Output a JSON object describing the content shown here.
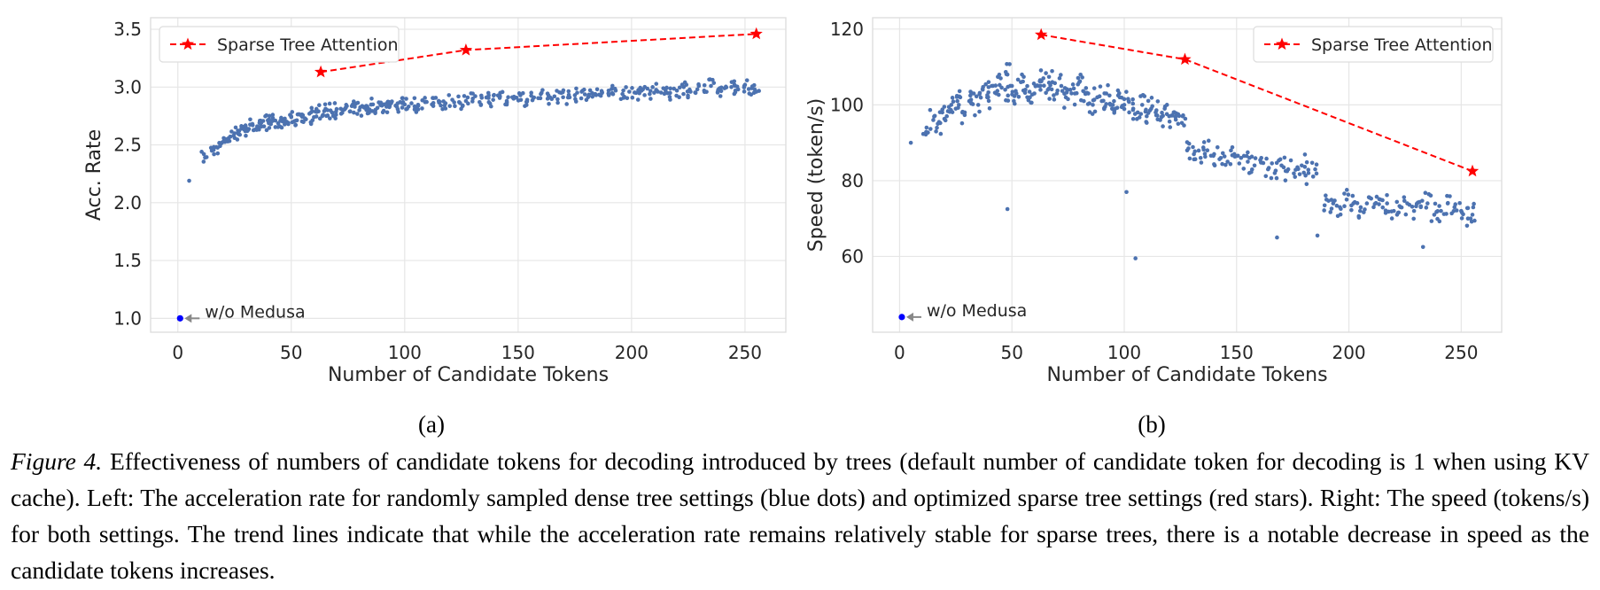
{
  "caption": {
    "lead": "Figure 4.",
    "text": "Effectiveness of numbers of candidate tokens for decoding introduced by trees (default number of candidate token for decoding is 1 when using KV cache). Left: The acceleration rate for randomly sampled dense tree settings (blue dots) and optimized sparse tree settings (red stars). Right: The speed (tokens/s) for both settings. The trend lines indicate that while the acceleration rate remains relatively stable for sparse trees, there is a notable decrease in speed as the candidate tokens increases."
  },
  "colors": {
    "dense": "#4c72b0",
    "sparse": "#ff0000",
    "baseline": "#0000ff",
    "arrow": "#888888",
    "grid": "#e6e6e6"
  },
  "chart_data": [
    {
      "type": "scatter",
      "panel_label": "(a)",
      "xlabel": "Number of Candidate Tokens",
      "ylabel": "Acc. Rate",
      "xlim": [
        -12,
        268
      ],
      "ylim": [
        0.88,
        3.6
      ],
      "xticks": [
        0,
        50,
        100,
        150,
        200,
        250
      ],
      "yticks": [
        1.0,
        1.5,
        2.0,
        2.5,
        3.0,
        3.5
      ],
      "ytick_labels": [
        "1.0",
        "1.5",
        "2.0",
        "2.5",
        "3.0",
        "3.5"
      ],
      "grid": true,
      "legend": {
        "position": "top-left",
        "label": "Sparse Tree Attention"
      },
      "annotation": {
        "text": "w/o Medusa",
        "x": 1,
        "y": 1.0
      },
      "series": [
        {
          "name": "Sparse Tree Attention",
          "style": "dashed-line-star",
          "x": [
            63,
            127,
            255
          ],
          "y": [
            3.13,
            3.32,
            3.46
          ]
        },
        {
          "style": "scatter-dots",
          "x": [
            1,
            5,
            12,
            15,
            17,
            19,
            21,
            23,
            25,
            27,
            28,
            30,
            31,
            33,
            35,
            36,
            38,
            40,
            41,
            43,
            45,
            46,
            48,
            50,
            52,
            54,
            56,
            58,
            60,
            62,
            64,
            66,
            68,
            70,
            72,
            74,
            76,
            78,
            80,
            82,
            84,
            86,
            88,
            90,
            92,
            94,
            96,
            98,
            100,
            103,
            106,
            109,
            112,
            115,
            118,
            121,
            124,
            127,
            130,
            133,
            136,
            139,
            142,
            145,
            148,
            151,
            154,
            157,
            160,
            163,
            166,
            169,
            172,
            175,
            178,
            181,
            184,
            187,
            190,
            193,
            196,
            199,
            202,
            205,
            208,
            211,
            214,
            217,
            220,
            223,
            226,
            229,
            232,
            235,
            238,
            241,
            244,
            247,
            250,
            253,
            255
          ],
          "y": [
            1.0,
            2.19,
            2.39,
            2.45,
            2.48,
            2.51,
            2.55,
            2.57,
            2.6,
            2.62,
            2.64,
            2.65,
            2.63,
            2.67,
            2.66,
            2.69,
            2.66,
            2.7,
            2.68,
            2.71,
            2.66,
            2.72,
            2.7,
            2.74,
            2.71,
            2.76,
            2.73,
            2.77,
            2.74,
            2.79,
            2.76,
            2.8,
            2.78,
            2.81,
            2.77,
            2.82,
            2.79,
            2.83,
            2.8,
            2.83,
            2.81,
            2.85,
            2.82,
            2.84,
            2.83,
            2.86,
            2.84,
            2.87,
            2.85,
            2.86,
            2.84,
            2.87,
            2.85,
            2.88,
            2.86,
            2.89,
            2.87,
            2.88,
            2.9,
            2.87,
            2.91,
            2.89,
            2.92,
            2.88,
            2.9,
            2.93,
            2.89,
            2.91,
            2.94,
            2.9,
            2.92,
            2.95,
            2.91,
            2.93,
            2.96,
            2.92,
            2.94,
            2.95,
            2.93,
            2.97,
            2.94,
            2.96,
            2.95,
            2.98,
            2.94,
            2.97,
            2.99,
            2.95,
            2.97,
            3.0,
            2.96,
            2.98,
            2.97,
            3.01,
            2.96,
            2.99,
            3.0,
            2.98,
            3.02,
            2.99,
            2.96
          ]
        }
      ]
    },
    {
      "type": "scatter",
      "panel_label": "(b)",
      "xlabel": "Number of Candidate Tokens",
      "ylabel": "Speed (token/s)",
      "xlim": [
        -12,
        268
      ],
      "ylim": [
        40,
        123
      ],
      "xticks": [
        0,
        50,
        100,
        150,
        200,
        250
      ],
      "yticks": [
        60,
        80,
        100,
        120
      ],
      "ytick_labels": [
        "60",
        "80",
        "100",
        "120"
      ],
      "grid": true,
      "legend": {
        "position": "top-right",
        "label": "Sparse Tree Attention"
      },
      "annotation": {
        "text": "w/o Medusa",
        "x": 1,
        "y": 44
      },
      "series": [
        {
          "name": "Sparse Tree Attention",
          "style": "dashed-line-star",
          "x": [
            63,
            127,
            255
          ],
          "y": [
            118.5,
            112,
            82.5
          ]
        },
        {
          "style": "scatter-dots",
          "x": [
            1,
            5,
            12,
            15,
            17,
            19,
            21,
            23,
            25,
            27,
            29,
            31,
            33,
            35,
            37,
            39,
            41,
            43,
            45,
            47,
            48,
            50,
            52,
            54,
            56,
            58,
            60,
            62,
            64,
            66,
            68,
            70,
            72,
            74,
            76,
            78,
            80,
            82,
            84,
            86,
            88,
            90,
            92,
            94,
            96,
            98,
            100,
            102,
            104,
            106,
            108,
            110,
            112,
            114,
            116,
            118,
            120,
            122,
            124,
            126,
            128,
            131,
            134,
            137,
            140,
            143,
            146,
            149,
            152,
            155,
            158,
            161,
            164,
            167,
            170,
            173,
            176,
            179,
            182,
            185,
            190,
            193,
            196,
            199,
            202,
            205,
            208,
            211,
            214,
            217,
            220,
            223,
            226,
            229,
            232,
            235,
            238,
            241,
            244,
            247,
            250,
            253,
            255,
            101,
            105,
            168,
            186,
            233,
            48
          ],
          "y": [
            44,
            90,
            94,
            96,
            95,
            98,
            97,
            100,
            99,
            102,
            98,
            101,
            103,
            100,
            104,
            102,
            105,
            103,
            107,
            104,
            108,
            105,
            103,
            106,
            104,
            102,
            103,
            105,
            107,
            104,
            106,
            103,
            105,
            102,
            104,
            103,
            106,
            101,
            103,
            100,
            102,
            101,
            103,
            100,
            99,
            102,
            100,
            101,
            99,
            98,
            100,
            97,
            99,
            98,
            96,
            99,
            97,
            98,
            95,
            97,
            88,
            87,
            86,
            88,
            87,
            86,
            85,
            87,
            86,
            85,
            84,
            86,
            83,
            82,
            84,
            83,
            81,
            84,
            82,
            83,
            75,
            74,
            73,
            75,
            74,
            72,
            74,
            73,
            75,
            74,
            72,
            73,
            74,
            72,
            73,
            74,
            71,
            72,
            74,
            73,
            72,
            70,
            71,
            77,
            59.5,
            65,
            65.5,
            62.5,
            72.5
          ]
        }
      ]
    }
  ]
}
